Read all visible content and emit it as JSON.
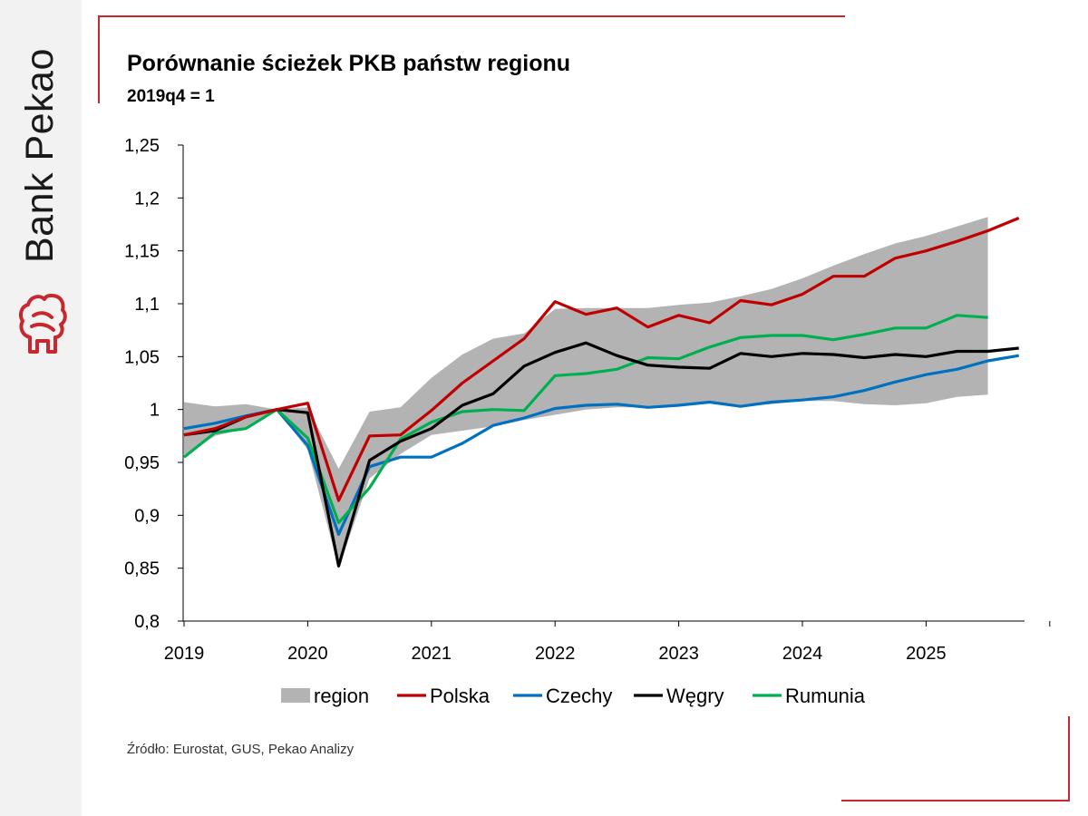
{
  "brand": {
    "name": "Bank Pekao",
    "logo_icon": "pekao-bison-logo-icon",
    "accent_color": "#c8282d"
  },
  "title": "Porównanie ścieżek PKB państw regionu",
  "subtitle": "2019q4 = 1",
  "source": "Źródło: Eurostat, GUS, Pekao Analizy",
  "chart_data": {
    "type": "line",
    "title": "Porównanie ścieżek PKB państw regionu",
    "subtitle": "2019q4 = 1",
    "x": [
      "2019q1",
      "2019q2",
      "2019q3",
      "2019q4",
      "2020q1",
      "2020q2",
      "2020q3",
      "2020q4",
      "2021q1",
      "2021q2",
      "2021q3",
      "2021q4",
      "2022q1",
      "2022q2",
      "2022q3",
      "2022q4",
      "2023q1",
      "2023q2",
      "2023q3",
      "2023q4",
      "2024q1",
      "2024q2",
      "2024q3",
      "2024q4",
      "2025q1",
      "2025q2",
      "2025q3",
      "2025q4"
    ],
    "x_tick_labels": [
      "2019",
      "2020",
      "2021",
      "2022",
      "2023",
      "2024",
      "2025"
    ],
    "y_ticks": [
      "0,8",
      "0,85",
      "0,9",
      "0,95",
      "1",
      "1,05",
      "1,1",
      "1,15",
      "1,2",
      "1,25"
    ],
    "ylim": [
      0.8,
      1.25
    ],
    "grid": false,
    "legend_position": "bottom",
    "band": {
      "name": "region",
      "color": "#b3b3b3",
      "upper": [
        1.007,
        1.003,
        1.005,
        1.0,
        1.002,
        0.944,
        0.998,
        1.002,
        1.03,
        1.052,
        1.067,
        1.072,
        1.095,
        1.096,
        1.096,
        1.096,
        1.099,
        1.101,
        1.107,
        1.114,
        1.124,
        1.136,
        1.147,
        1.157,
        1.164,
        1.173,
        1.182,
        null
      ],
      "lower": [
        0.957,
        0.975,
        0.982,
        1.0,
        0.962,
        0.85,
        0.935,
        0.958,
        0.976,
        0.98,
        0.984,
        0.99,
        0.995,
        1.0,
        1.002,
        1.002,
        1.004,
        1.006,
        1.003,
        1.005,
        1.008,
        1.008,
        1.005,
        1.004,
        1.006,
        1.012,
        1.014,
        null
      ]
    },
    "series": [
      {
        "name": "Polska",
        "color": "#c00000",
        "values": [
          0.976,
          0.982,
          0.993,
          1.0,
          1.006,
          0.914,
          0.975,
          0.976,
          0.999,
          1.025,
          1.046,
          1.067,
          1.102,
          1.09,
          1.096,
          1.078,
          1.089,
          1.082,
          1.103,
          1.099,
          1.109,
          1.126,
          1.126,
          1.143,
          1.15,
          1.159,
          1.169,
          1.181
        ]
      },
      {
        "name": "Czechy",
        "color": "#0070c0",
        "values": [
          0.982,
          0.987,
          0.994,
          1.0,
          0.966,
          0.882,
          0.946,
          0.955,
          0.955,
          0.968,
          0.985,
          0.992,
          1.001,
          1.004,
          1.005,
          1.002,
          1.004,
          1.007,
          1.003,
          1.007,
          1.009,
          1.012,
          1.018,
          1.026,
          1.033,
          1.038,
          1.046,
          1.051
        ]
      },
      {
        "name": "Węgry",
        "color": "#000000",
        "values": [
          0.976,
          0.98,
          0.993,
          1.0,
          0.997,
          0.852,
          0.952,
          0.97,
          0.982,
          1.004,
          1.015,
          1.041,
          1.054,
          1.063,
          1.051,
          1.042,
          1.04,
          1.039,
          1.053,
          1.05,
          1.053,
          1.052,
          1.049,
          1.052,
          1.05,
          1.055,
          1.055,
          1.058
        ]
      },
      {
        "name": "Rumunia",
        "color": "#00b050",
        "values": [
          0.955,
          0.978,
          0.982,
          1.0,
          0.973,
          0.893,
          0.926,
          0.972,
          0.988,
          0.998,
          1.0,
          0.999,
          1.032,
          1.034,
          1.038,
          1.049,
          1.048,
          1.059,
          1.068,
          1.07,
          1.07,
          1.066,
          1.071,
          1.077,
          1.077,
          1.089,
          1.087,
          null
        ]
      }
    ]
  }
}
